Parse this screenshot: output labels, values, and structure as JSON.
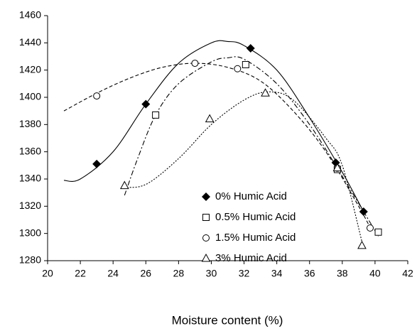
{
  "chart_data": {
    "type": "scatter",
    "xlabel": "Moisture content (%)",
    "xlim": [
      20,
      42
    ],
    "xticks": [
      20,
      22,
      24,
      26,
      28,
      30,
      32,
      34,
      36,
      38,
      40,
      42
    ],
    "ylim": [
      1280,
      1460
    ],
    "yticks": [
      1280,
      1300,
      1320,
      1340,
      1360,
      1380,
      1400,
      1420,
      1440,
      1460
    ],
    "grid": false,
    "legend": "lower center",
    "series": [
      {
        "name": "0% Humic Acid",
        "color": "#000000",
        "marker": "diamond",
        "line": "solid",
        "x": [
          23.0,
          26.0,
          32.4,
          37.6,
          39.3
        ],
        "values": [
          1351,
          1395,
          1436,
          1352,
          1316
        ],
        "trend_x": [
          21,
          22,
          24,
          26,
          28,
          30,
          31,
          32,
          34,
          36,
          38,
          39.3
        ],
        "trend_y": [
          1339,
          1340,
          1360,
          1395,
          1425,
          1440,
          1441,
          1438,
          1420,
          1385,
          1345,
          1316
        ]
      },
      {
        "name": "0.5% Humic Acid",
        "color": "#000000",
        "marker": "square",
        "line": "dashdot",
        "x": [
          26.6,
          32.1,
          37.7,
          40.2
        ],
        "values": [
          1387,
          1424,
          1347,
          1301
        ],
        "trend_x": [
          24.7,
          25.5,
          26.6,
          28,
          30,
          31,
          32,
          34,
          36,
          38,
          40.2
        ],
        "trend_y": [
          1328,
          1355,
          1387,
          1410,
          1426,
          1429,
          1428,
          1410,
          1380,
          1342,
          1298
        ]
      },
      {
        "name": "1.5% Humic Acid",
        "color": "#000000",
        "marker": "circle",
        "line": "dashed",
        "x": [
          23.0,
          29.0,
          31.6,
          37.7,
          39.7
        ],
        "values": [
          1401,
          1425,
          1421,
          1348,
          1304
        ],
        "trend_x": [
          21,
          23,
          25,
          27,
          29,
          31,
          33,
          35,
          37,
          39,
          39.8
        ],
        "trend_y": [
          1390,
          1403,
          1414,
          1422,
          1425,
          1422,
          1412,
          1390,
          1360,
          1320,
          1302
        ]
      },
      {
        "name": "3% Humic Acid",
        "color": "#000000",
        "marker": "triangle",
        "line": "dotted",
        "x": [
          24.7,
          29.9,
          33.3,
          37.7,
          39.2
        ],
        "values": [
          1335,
          1384,
          1403,
          1348,
          1291
        ],
        "trend_x": [
          24.5,
          26,
          28,
          30,
          32,
          33.5,
          35,
          37,
          38,
          39.2
        ],
        "trend_y": [
          1334,
          1336,
          1355,
          1380,
          1398,
          1404,
          1398,
          1370,
          1350,
          1294
        ]
      }
    ]
  }
}
